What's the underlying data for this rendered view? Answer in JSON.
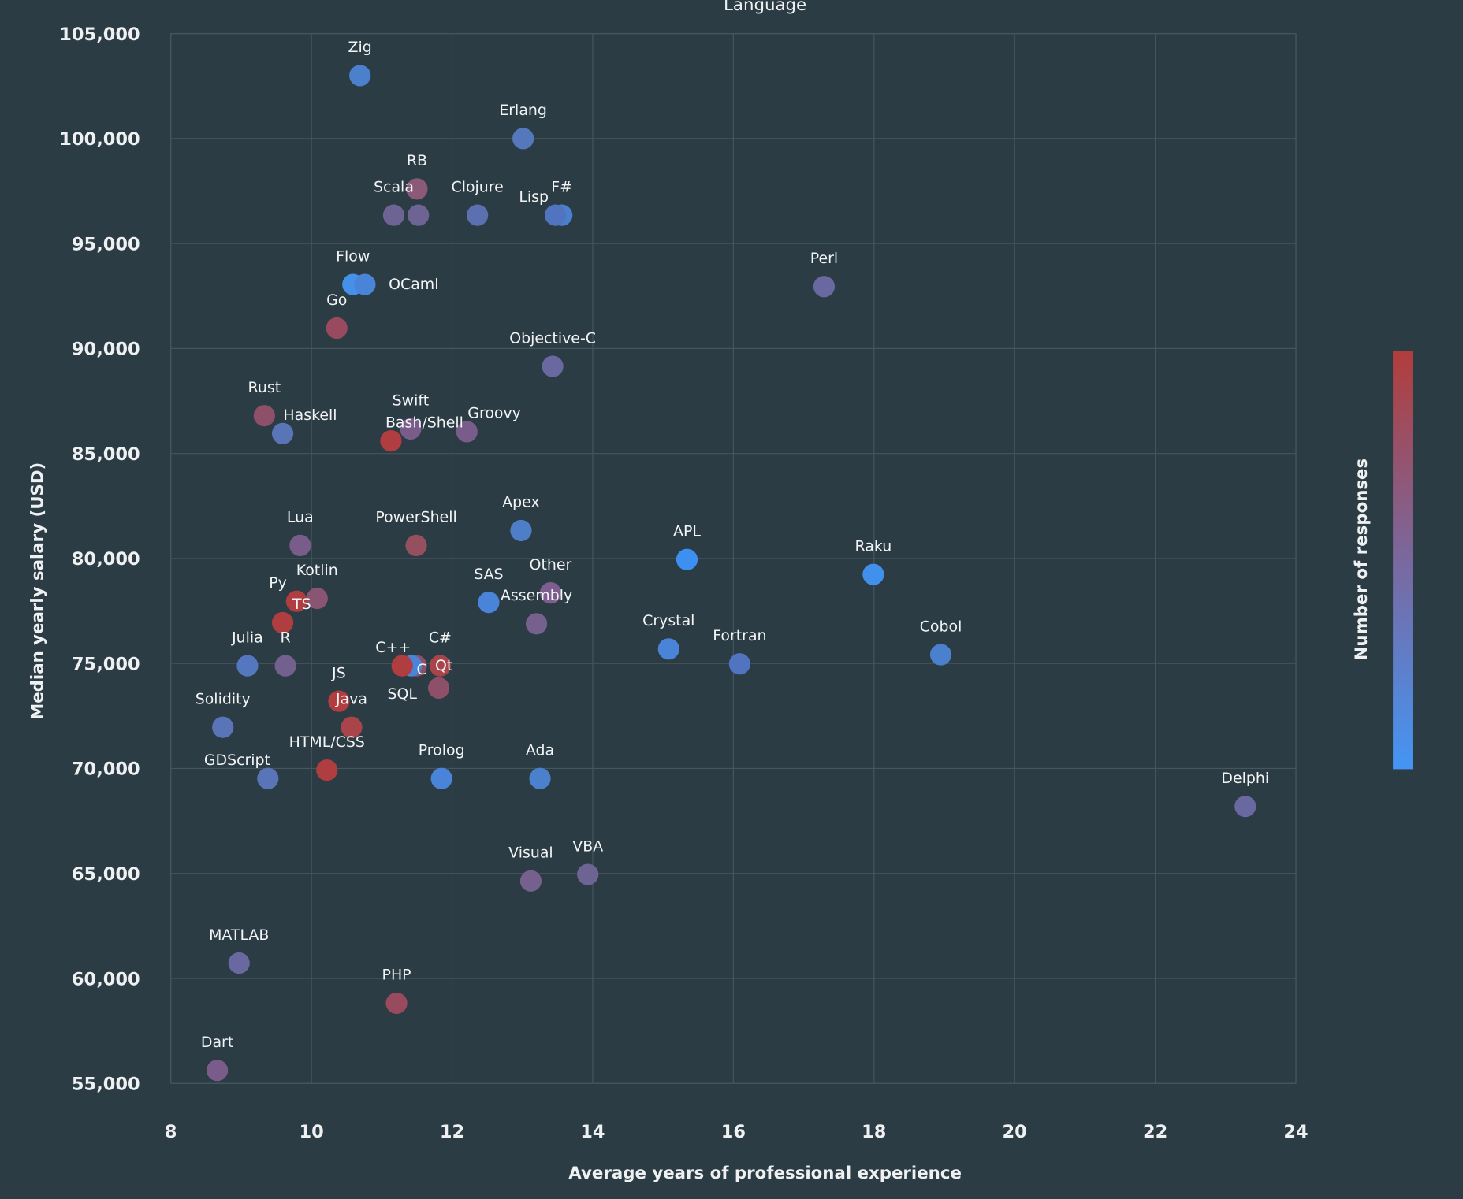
{
  "chart_data": {
    "type": "scatter",
    "title": "Language",
    "xlabel": "Average years of professional experience",
    "ylabel": "Median yearly salary (USD)",
    "colorbar_label": "Number of responses",
    "colorscale": [
      "#4495f5",
      "#7a689e",
      "#b23d3b"
    ],
    "xlim": [
      8,
      24
    ],
    "ylim": [
      55000,
      105000
    ],
    "xticks": [
      8,
      10,
      12,
      14,
      16,
      18,
      20,
      22,
      24
    ],
    "xtick_labels": [
      "8",
      "10",
      "12",
      "14",
      "16",
      "18",
      "20",
      "22",
      "24"
    ],
    "yticks": [
      55000,
      60000,
      65000,
      70000,
      75000,
      80000,
      85000,
      90000,
      95000,
      100000,
      105000
    ],
    "ytick_labels": [
      "55,000",
      "60,000",
      "65,000",
      "70,000",
      "75,000",
      "80,000",
      "85,000",
      "90,000",
      "95,000",
      "100,000",
      "105,000"
    ],
    "grid": true,
    "background": "#2c3c44",
    "points": [
      {
        "name": "Zig",
        "x": 10.69,
        "y": 103000,
        "color": "#4a80cc"
      },
      {
        "name": "Erlang",
        "x": 13.01,
        "y": 100000,
        "color": "#5577bb"
      },
      {
        "name": "Scala",
        "x": 11.17,
        "y": 96350,
        "color": "#6e6494"
      },
      {
        "name": "",
        "x": 11.52,
        "y": 96350,
        "color": "#6e6494"
      },
      {
        "name": "RB",
        "x": 11.5,
        "y": 97600,
        "color": "#8a5a78"
      },
      {
        "name": "Clojure",
        "x": 12.36,
        "y": 96350,
        "color": "#5a70b0"
      },
      {
        "name": "F#",
        "x": 13.56,
        "y": 96350,
        "color": "#4a80cc"
      },
      {
        "name": "Lisp",
        "x": 13.47,
        "y": 96350,
        "color": "#5074c0"
      },
      {
        "name": "Perl",
        "x": 17.29,
        "y": 92950,
        "color": "#6a68a0"
      },
      {
        "name": "Flow",
        "x": 10.59,
        "y": 93050,
        "color": "#4590e8"
      },
      {
        "name": "OCaml",
        "x": 10.76,
        "y": 93050,
        "color": "#4a84d8"
      },
      {
        "name": "Go",
        "x": 10.36,
        "y": 90970,
        "color": "#9a4a5e"
      },
      {
        "name": "Objective-C",
        "x": 13.43,
        "y": 89150,
        "color": "#6a68a0"
      },
      {
        "name": "Rust",
        "x": 9.33,
        "y": 86800,
        "color": "#8e5068"
      },
      {
        "name": "Haskell",
        "x": 9.59,
        "y": 85950,
        "color": "#5a74b8"
      },
      {
        "name": "Swift",
        "x": 11.41,
        "y": 86170,
        "color": "#7a5c8a"
      },
      {
        "name": "Bash/Shell",
        "x": 11.13,
        "y": 85600,
        "color": "#b03d40"
      },
      {
        "name": "Groovy",
        "x": 12.21,
        "y": 86040,
        "color": "#7a5c8a"
      },
      {
        "name": "Lua",
        "x": 9.84,
        "y": 80620,
        "color": "#7a5c8a"
      },
      {
        "name": "PowerShell",
        "x": 11.49,
        "y": 80620,
        "color": "#95505f"
      },
      {
        "name": "Apex",
        "x": 12.98,
        "y": 81330,
        "color": "#4f7ec8"
      },
      {
        "name": "APL",
        "x": 15.34,
        "y": 79950,
        "color": "#3d8ff0"
      },
      {
        "name": "Raku",
        "x": 17.99,
        "y": 79240,
        "color": "#4090ec"
      },
      {
        "name": "Other",
        "x": 13.4,
        "y": 78360,
        "color": "#7e5e8e"
      },
      {
        "name": "Kotlin",
        "x": 10.08,
        "y": 78100,
        "color": "#8a5572"
      },
      {
        "name": "Py",
        "x": 9.79,
        "y": 77960,
        "color": "#b03d40"
      },
      {
        "name": "SAS",
        "x": 12.52,
        "y": 77910,
        "color": "#4a84d8"
      },
      {
        "name": "TS",
        "x": 9.59,
        "y": 76940,
        "color": "#b03d40"
      },
      {
        "name": "Assembly",
        "x": 13.2,
        "y": 76890,
        "color": "#76608e"
      },
      {
        "name": "Crystal",
        "x": 15.08,
        "y": 75690,
        "color": "#4a84d8"
      },
      {
        "name": "Cobol",
        "x": 18.95,
        "y": 75420,
        "color": "#4a80cc"
      },
      {
        "name": "Julia",
        "x": 9.09,
        "y": 74890,
        "color": "#5577c0"
      },
      {
        "name": "R",
        "x": 9.63,
        "y": 74890,
        "color": "#72608e"
      },
      {
        "name": "Fortran",
        "x": 16.09,
        "y": 74980,
        "color": "#5074c0"
      },
      {
        "name": "C#",
        "x": 11.83,
        "y": 74890,
        "color": "#a8444a"
      },
      {
        "name": "C++",
        "x": 11.49,
        "y": 74890,
        "color": "#8e5068"
      },
      {
        "name": "Qt",
        "x": 11.42,
        "y": 74890,
        "color": "#4a84d8"
      },
      {
        "name": "SQL",
        "x": 11.29,
        "y": 74890,
        "color": "#b03d40"
      },
      {
        "name": "C",
        "x": 11.81,
        "y": 73830,
        "color": "#8e5068"
      },
      {
        "name": "JS",
        "x": 10.39,
        "y": 73200,
        "color": "#b03d40"
      },
      {
        "name": "Java",
        "x": 10.57,
        "y": 71960,
        "color": "#a8444a"
      },
      {
        "name": "Solidity",
        "x": 8.74,
        "y": 71960,
        "color": "#5a74b8"
      },
      {
        "name": "HTML/CSS",
        "x": 10.22,
        "y": 69920,
        "color": "#b03d40"
      },
      {
        "name": "GDScript",
        "x": 9.38,
        "y": 69520,
        "color": "#5a74b8"
      },
      {
        "name": "Prolog",
        "x": 11.85,
        "y": 69520,
        "color": "#4a84d8"
      },
      {
        "name": "Ada",
        "x": 13.25,
        "y": 69520,
        "color": "#4a80cc"
      },
      {
        "name": "Delphi",
        "x": 23.28,
        "y": 68190,
        "color": "#6a68a0"
      },
      {
        "name": "Visual",
        "x": 13.12,
        "y": 64640,
        "color": "#76608e"
      },
      {
        "name": "VBA",
        "x": 13.93,
        "y": 64950,
        "color": "#6e6494"
      },
      {
        "name": "MATLAB",
        "x": 8.97,
        "y": 60730,
        "color": "#6a68a0"
      },
      {
        "name": "PHP",
        "x": 11.21,
        "y": 58820,
        "color": "#9a4a5e"
      },
      {
        "name": "Dart",
        "x": 8.66,
        "y": 55620,
        "color": "#7a5c8a"
      }
    ]
  }
}
